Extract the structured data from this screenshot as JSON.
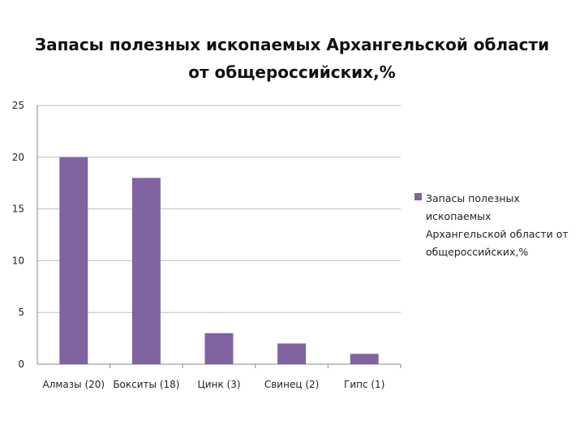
{
  "chart_data": {
    "type": "bar",
    "title": "Запасы полезных ископаемых Архангельской области от общероссийских,%",
    "categories": [
      "Алмазы (20)",
      "Бокситы (18)",
      "Цинк (3)",
      "Свинец (2)",
      "Гипс (1)"
    ],
    "series": [
      {
        "name": "Запасы полезных ископаемых Архангельской области от общероссийских,%",
        "values": [
          20,
          18,
          3,
          2,
          1
        ],
        "color": "#8064A2"
      }
    ],
    "ylim": [
      0,
      25
    ],
    "yticks": [
      "0",
      "5",
      "10",
      "15",
      "20",
      "25"
    ],
    "grid": true,
    "legend_position": "right",
    "xlabel": "",
    "ylabel": ""
  }
}
